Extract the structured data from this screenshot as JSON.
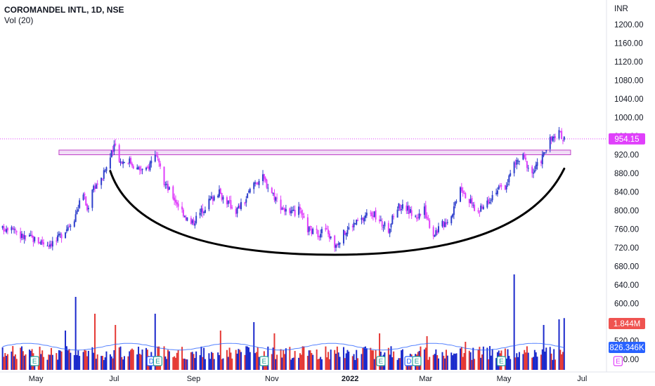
{
  "legend": {
    "symbol": "COROMANDEL INTL, 1D, NSE",
    "volume_label": "Vol (20)"
  },
  "currency": "INR",
  "colors": {
    "up": "#2e3fcc",
    "down": "#e040fb",
    "vol_up": "#1b2acc",
    "vol_down": "#e53935",
    "ma": "#2962ff",
    "resistance_fill": "#e8c8f0",
    "resistance_stroke": "#c040c8",
    "cup": "#000000",
    "price_badge": "#e040fb",
    "vol_badge": "#ef5350",
    "ma_badge": "#2962ff",
    "event": "#e040fb",
    "event_dividend": "#2962ff",
    "event_split": "#26a69a"
  },
  "chart_data": {
    "type": "candlestick",
    "title": "COROMANDEL INTL, 1D, NSE",
    "y_axis": {
      "ticks": [
        1200,
        1160,
        1120,
        1080,
        1040,
        1000,
        960,
        920,
        880,
        840,
        800,
        760,
        720,
        680,
        640,
        600,
        560,
        520,
        480
      ],
      "tick_labels": [
        "1200.00",
        "1160.00",
        "1120.00",
        "1080.00",
        "1040.00",
        "1000.00",
        "960.00",
        "920.00",
        "880.00",
        "840.00",
        "800.00",
        "760.00",
        "720.00",
        "680.00",
        "640.00",
        "600.00",
        "560.00",
        "520.00",
        "480.00"
      ],
      "range": [
        470,
        1220
      ]
    },
    "x_axis": {
      "labels": [
        "May",
        "Jul",
        "Sep",
        "Nov",
        "2022",
        "Mar",
        "May",
        "Jul"
      ],
      "bold": [
        "2022"
      ],
      "label_positions_in_months": [
        0,
        2,
        4,
        6,
        8,
        10,
        12,
        14
      ],
      "range_start": "2021-04-03",
      "range_end": "2022-07-20"
    },
    "last_price": {
      "value": 954.15,
      "label": "954.15"
    },
    "volume_badge": {
      "value": "1.844M"
    },
    "volume_ma_badge": {
      "value": "826.346K"
    },
    "resistance_zone": {
      "low": 920,
      "high": 930,
      "from": "2021-05-19",
      "to": "2022-06-22"
    },
    "cup": {
      "left": [
        "2021-06-28",
        885
      ],
      "bottom": [
        "2021-12-20",
        705
      ],
      "right": [
        "2022-06-17",
        890
      ]
    },
    "price_path": [
      [
        "2021-04-05",
        760
      ],
      [
        "2021-04-12",
        770
      ],
      [
        "2021-04-19",
        745
      ],
      [
        "2021-04-26",
        742
      ],
      [
        "2021-05-03",
        735
      ],
      [
        "2021-05-10",
        728
      ],
      [
        "2021-05-17",
        735
      ],
      [
        "2021-05-24",
        760
      ],
      [
        "2021-05-31",
        785
      ],
      [
        "2021-06-07",
        840
      ],
      [
        "2021-06-10",
        800
      ],
      [
        "2021-06-14",
        850
      ],
      [
        "2021-06-21",
        865
      ],
      [
        "2021-06-28",
        915
      ],
      [
        "2021-07-02",
        940
      ],
      [
        "2021-07-06",
        905
      ],
      [
        "2021-07-12",
        910
      ],
      [
        "2021-07-19",
        890
      ],
      [
        "2021-07-26",
        885
      ],
      [
        "2021-08-02",
        925
      ],
      [
        "2021-08-05",
        895
      ],
      [
        "2021-08-09",
        860
      ],
      [
        "2021-08-16",
        830
      ],
      [
        "2021-08-23",
        800
      ],
      [
        "2021-08-30",
        770
      ],
      [
        "2021-09-06",
        795
      ],
      [
        "2021-09-13",
        820
      ],
      [
        "2021-09-20",
        840
      ],
      [
        "2021-09-27",
        820
      ],
      [
        "2021-10-04",
        800
      ],
      [
        "2021-10-11",
        820
      ],
      [
        "2021-10-18",
        860
      ],
      [
        "2021-10-25",
        870
      ],
      [
        "2021-11-01",
        840
      ],
      [
        "2021-11-08",
        810
      ],
      [
        "2021-11-15",
        790
      ],
      [
        "2021-11-22",
        800
      ],
      [
        "2021-11-29",
        760
      ],
      [
        "2021-12-06",
        750
      ],
      [
        "2021-12-13",
        760
      ],
      [
        "2021-12-20",
        725
      ],
      [
        "2021-12-27",
        750
      ],
      [
        "2022-01-03",
        770
      ],
      [
        "2022-01-10",
        780
      ],
      [
        "2022-01-17",
        800
      ],
      [
        "2022-01-24",
        775
      ],
      [
        "2022-01-31",
        760
      ],
      [
        "2022-02-07",
        810
      ],
      [
        "2022-02-14",
        805
      ],
      [
        "2022-02-21",
        785
      ],
      [
        "2022-02-28",
        800
      ],
      [
        "2022-03-07",
        750
      ],
      [
        "2022-03-14",
        770
      ],
      [
        "2022-03-21",
        790
      ],
      [
        "2022-03-28",
        855
      ],
      [
        "2022-04-04",
        820
      ],
      [
        "2022-04-11",
        795
      ],
      [
        "2022-04-18",
        820
      ],
      [
        "2022-04-25",
        845
      ],
      [
        "2022-05-02",
        850
      ],
      [
        "2022-05-09",
        900
      ],
      [
        "2022-05-16",
        915
      ],
      [
        "2022-05-23",
        880
      ],
      [
        "2022-05-30",
        910
      ],
      [
        "2022-06-06",
        950
      ],
      [
        "2022-06-13",
        965
      ],
      [
        "2022-06-17",
        954
      ]
    ],
    "volume_spikes": [
      [
        "2021-05-24",
        1.4
      ],
      [
        "2021-06-01",
        2.6
      ],
      [
        "2021-06-16",
        2.0
      ],
      [
        "2021-07-02",
        1.6
      ],
      [
        "2021-08-02",
        2.0
      ],
      [
        "2021-09-22",
        1.4
      ],
      [
        "2021-10-18",
        1.7
      ],
      [
        "2021-11-03",
        1.3
      ],
      [
        "2022-01-24",
        1.3
      ],
      [
        "2022-03-02",
        1.2
      ],
      [
        "2022-04-01",
        1.0
      ],
      [
        "2022-05-09",
        3.4
      ],
      [
        "2022-06-01",
        1.6
      ],
      [
        "2022-06-13",
        1.8
      ],
      [
        "2022-06-17",
        1.844
      ]
    ],
    "volume_ma": 0.826,
    "events": [
      {
        "date": "2021-04-30",
        "label": "E"
      },
      {
        "date": "2021-07-30",
        "label": "D"
      },
      {
        "date": "2021-08-04",
        "label": "E"
      },
      {
        "date": "2021-10-26",
        "label": "E"
      },
      {
        "date": "2022-01-25",
        "label": "E"
      },
      {
        "date": "2022-02-16",
        "label": "D"
      },
      {
        "date": "2022-02-22",
        "label": "E"
      },
      {
        "date": "2022-04-29",
        "label": "E"
      },
      {
        "date": "2022-07-29",
        "label": "E"
      }
    ]
  }
}
